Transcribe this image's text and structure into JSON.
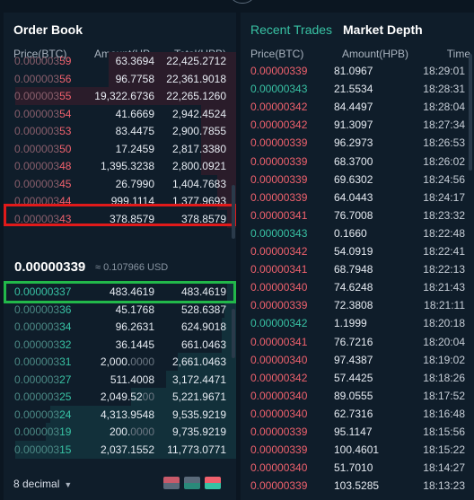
{
  "orderbook": {
    "title": "Order Book",
    "headers": {
      "price": "Price(BTC)",
      "amount": "Amount(HP...",
      "total": "Total(HPB)"
    },
    "asks": [
      {
        "price_fade": "0.000003",
        "price_strong": "59",
        "amount": "63.3694",
        "amount_fade": "",
        "total": "22,425.2712",
        "depth": 0.55
      },
      {
        "price_fade": "0.000003",
        "price_strong": "56",
        "amount": "96.7758",
        "amount_fade": "",
        "total": "22,361.9018",
        "depth": 0.55
      },
      {
        "price_fade": "0.000003",
        "price_strong": "55",
        "amount": "19,322.6736",
        "amount_fade": "",
        "total": "22,265.1260",
        "depth": 0.95
      },
      {
        "price_fade": "0.000003",
        "price_strong": "54",
        "amount": "41.6669",
        "amount_fade": "",
        "total": "2,942.4524",
        "depth": 0.15
      },
      {
        "price_fade": "0.000003",
        "price_strong": "53",
        "amount": "83.4475",
        "amount_fade": "",
        "total": "2,900.7855",
        "depth": 0.15
      },
      {
        "price_fade": "0.000003",
        "price_strong": "50",
        "amount": "17.2459",
        "amount_fade": "",
        "total": "2,817.3380",
        "depth": 0.15
      },
      {
        "price_fade": "0.000003",
        "price_strong": "48",
        "amount": "1,395.3238",
        "amount_fade": "",
        "total": "2,800.0921",
        "depth": 0.15
      },
      {
        "price_fade": "0.000003",
        "price_strong": "45",
        "amount": "26.7990",
        "amount_fade": "",
        "total": "1,404.7683",
        "depth": 0.08
      },
      {
        "price_fade": "0.000003",
        "price_strong": "44",
        "amount": "999.1114",
        "amount_fade": "",
        "total": "1,377.9693",
        "depth": 0.08
      },
      {
        "price_fade": "0.000003",
        "price_strong": "43",
        "amount": "378.8579",
        "amount_fade": "",
        "total": "378.8579",
        "depth": 0.04
      }
    ],
    "mid": {
      "price": "0.00000339",
      "fiat": "≈ 0.107966 USD"
    },
    "bids": [
      {
        "price_fade": "",
        "price_strong": "0.00000337",
        "amount": "483.4619",
        "amount_fade": "",
        "total": "483.4619",
        "depth": 0.04
      },
      {
        "price_fade": "0.000003",
        "price_strong": "36",
        "amount": "45.1768",
        "amount_fade": "",
        "total": "528.6387",
        "depth": 0.05
      },
      {
        "price_fade": "0.000003",
        "price_strong": "34",
        "amount": "96.2631",
        "amount_fade": "",
        "total": "624.9018",
        "depth": 0.06
      },
      {
        "price_fade": "0.000003",
        "price_strong": "32",
        "amount": "36.1445",
        "amount_fade": "",
        "total": "661.0463",
        "depth": 0.06
      },
      {
        "price_fade": "0.000003",
        "price_strong": "31",
        "amount": "2,000.",
        "amount_fade": "0000",
        "total": "2,661.0463",
        "depth": 0.25
      },
      {
        "price_fade": "0.000003",
        "price_strong": "27",
        "amount": "511.4008",
        "amount_fade": "",
        "total": "3,172.4471",
        "depth": 0.3
      },
      {
        "price_fade": "0.000003",
        "price_strong": "25",
        "amount": "2,049.52",
        "amount_fade": "00",
        "total": "5,221.9671",
        "depth": 0.45
      },
      {
        "price_fade": "0.000003",
        "price_strong": "24",
        "amount": "4,313.9548",
        "amount_fade": "",
        "total": "9,535.9219",
        "depth": 0.8
      },
      {
        "price_fade": "0.000003",
        "price_strong": "19",
        "amount": "200.",
        "amount_fade": "0000",
        "total": "9,735.9219",
        "depth": 0.82
      },
      {
        "price_fade": "0.000003",
        "price_strong": "15",
        "amount": "2,037.1552",
        "amount_fade": "",
        "total": "11,773.0771",
        "depth": 0.95
      }
    ],
    "footer": {
      "decimal_label": "8 decimal"
    },
    "colors": {
      "ask": "#f0616d",
      "bid": "#38c2a4"
    }
  },
  "trades": {
    "tabs": [
      "Recent Trades",
      "Market Depth"
    ],
    "headers": {
      "price": "Price(BTC)",
      "amount": "Amount(HPB)",
      "time": "Time"
    },
    "rows": [
      {
        "side": "ask",
        "price": "0.00000339",
        "amount": "81.0967",
        "time": "18:29:01"
      },
      {
        "side": "bid",
        "price": "0.00000343",
        "amount": "21.5534",
        "time": "18:28:31"
      },
      {
        "side": "ask",
        "price": "0.00000342",
        "amount": "84.4497",
        "time": "18:28:04"
      },
      {
        "side": "ask",
        "price": "0.00000342",
        "amount": "91.3097",
        "time": "18:27:34"
      },
      {
        "side": "ask",
        "price": "0.00000339",
        "amount": "96.2973",
        "time": "18:26:53"
      },
      {
        "side": "ask",
        "price": "0.00000339",
        "amount": "68.3700",
        "time": "18:26:02"
      },
      {
        "side": "ask",
        "price": "0.00000339",
        "amount": "69.6302",
        "time": "18:24:56"
      },
      {
        "side": "ask",
        "price": "0.00000339",
        "amount": "64.0443",
        "time": "18:24:17"
      },
      {
        "side": "ask",
        "price": "0.00000341",
        "amount": "76.7008",
        "time": "18:23:32"
      },
      {
        "side": "bid",
        "price": "0.00000343",
        "amount": "0.1660",
        "time": "18:22:48"
      },
      {
        "side": "ask",
        "price": "0.00000342",
        "amount": "54.0919",
        "time": "18:22:41"
      },
      {
        "side": "ask",
        "price": "0.00000341",
        "amount": "68.7948",
        "time": "18:22:13"
      },
      {
        "side": "ask",
        "price": "0.00000340",
        "amount": "74.6248",
        "time": "18:21:43"
      },
      {
        "side": "ask",
        "price": "0.00000339",
        "amount": "72.3808",
        "time": "18:21:11"
      },
      {
        "side": "bid",
        "price": "0.00000342",
        "amount": "1.1999",
        "time": "18:20:18"
      },
      {
        "side": "ask",
        "price": "0.00000341",
        "amount": "76.7216",
        "time": "18:20:04"
      },
      {
        "side": "ask",
        "price": "0.00000340",
        "amount": "97.4387",
        "time": "18:19:02"
      },
      {
        "side": "ask",
        "price": "0.00000342",
        "amount": "57.4425",
        "time": "18:18:26"
      },
      {
        "side": "ask",
        "price": "0.00000340",
        "amount": "89.0555",
        "time": "18:17:52"
      },
      {
        "side": "ask",
        "price": "0.00000340",
        "amount": "62.7316",
        "time": "18:16:48"
      },
      {
        "side": "ask",
        "price": "0.00000339",
        "amount": "95.1147",
        "time": "18:15:56"
      },
      {
        "side": "ask",
        "price": "0.00000339",
        "amount": "100.4601",
        "time": "18:15:22"
      },
      {
        "side": "ask",
        "price": "0.00000340",
        "amount": "51.7010",
        "time": "18:14:27"
      },
      {
        "side": "ask",
        "price": "0.00000339",
        "amount": "103.5285",
        "time": "18:13:23"
      }
    ]
  },
  "icons": {
    "book-view": "orderbook-both-icon",
    "sell-view": "orderbook-sell-icon",
    "buy-view": "orderbook-buy-icon"
  }
}
